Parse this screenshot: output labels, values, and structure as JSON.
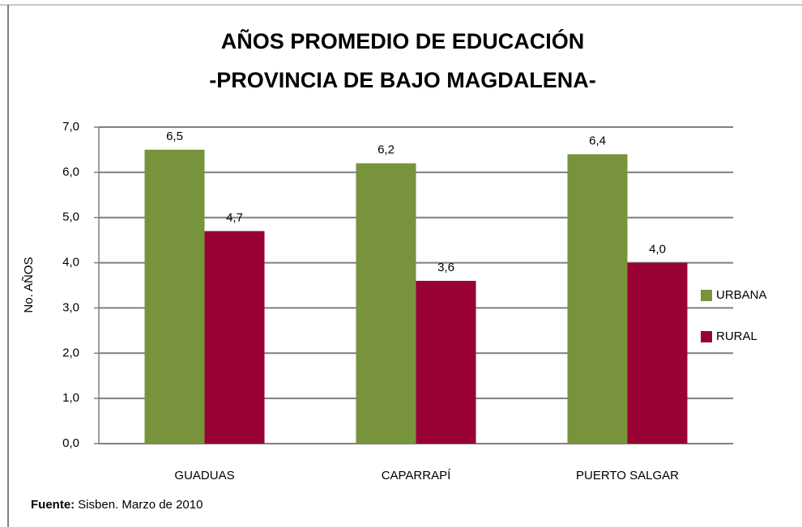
{
  "chart_data": {
    "type": "bar",
    "title": [
      "AÑOS PROMEDIO DE EDUCACIÓN",
      "-PROVINCIA DE BAJO MAGDALENA-"
    ],
    "y_label": "No. AÑOS",
    "categories": [
      "GUADUAS",
      "CAPARRAPÍ",
      "PUERTO SALGAR"
    ],
    "series": [
      {
        "name": "URBANA",
        "color": "#77933c",
        "values": [
          6.5,
          6.2,
          6.4
        ],
        "value_labels": [
          "6,5",
          "6,2",
          "6,4"
        ]
      },
      {
        "name": "RURAL",
        "color": "#990033",
        "values": [
          4.7,
          3.6,
          4.0
        ],
        "value_labels": [
          "4,7",
          "3,6",
          "4,0"
        ]
      }
    ],
    "ylim": [
      0,
      7
    ],
    "yticks": [
      {
        "value": 0,
        "label": "0,0"
      },
      {
        "value": 1,
        "label": "1,0"
      },
      {
        "value": 2,
        "label": "2,0"
      },
      {
        "value": 3,
        "label": "3,0"
      },
      {
        "value": 4,
        "label": "4,0"
      },
      {
        "value": 5,
        "label": "5,0"
      },
      {
        "value": 6,
        "label": "6,0"
      },
      {
        "value": 7,
        "label": "7,0"
      }
    ],
    "grid": true,
    "legend": "right",
    "source_label": "Fuente:",
    "source": "Sisben.  Marzo de 2010"
  }
}
